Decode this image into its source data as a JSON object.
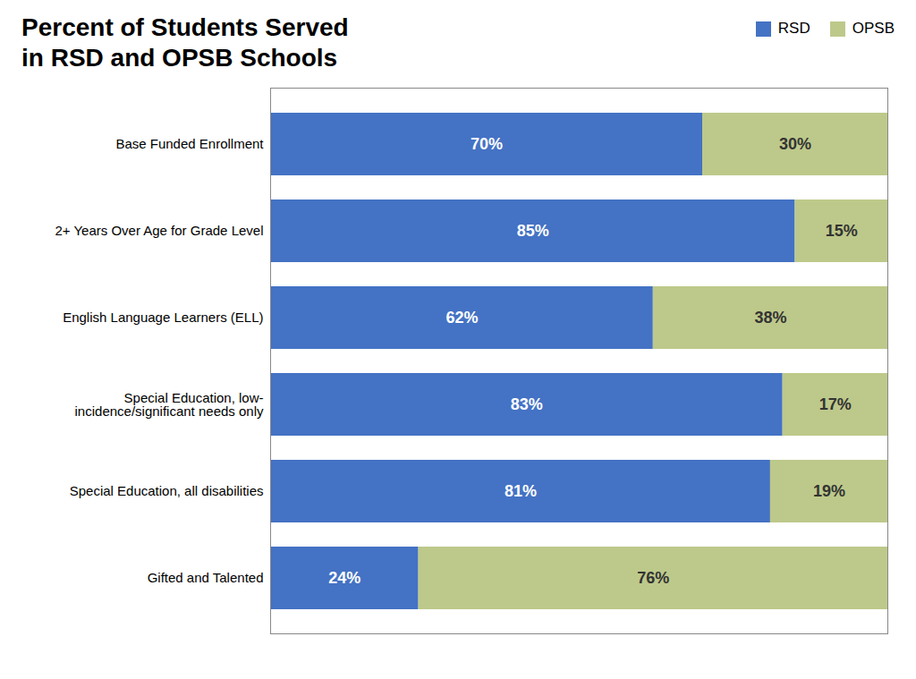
{
  "chart_data": {
    "type": "bar",
    "orientation": "horizontal",
    "stacked": true,
    "title": "Percent of Students Served\nin RSD and OPSB Schools",
    "categories": [
      "Base Funded Enrollment",
      "2+ Years Over Age for Grade Level",
      "English Language Learners (ELL)",
      "Special Education, low-\nincidence/significant needs only",
      "Special Education, all disabilities",
      "Gifted and Talented"
    ],
    "series": [
      {
        "name": "RSD",
        "color": "#4472C4",
        "values": [
          70,
          85,
          62,
          83,
          81,
          24
        ],
        "value_labels": [
          "70%",
          "85%",
          "62%",
          "83%",
          "81%",
          "24%"
        ]
      },
      {
        "name": "OPSB",
        "color": "#BDC98A",
        "values": [
          30,
          15,
          38,
          17,
          19,
          76
        ],
        "value_labels": [
          "30%",
          "15%",
          "38%",
          "17%",
          "19%",
          "76%"
        ]
      }
    ],
    "xlim": [
      0,
      100
    ],
    "xticks": [],
    "grid": false,
    "legend": "upper right",
    "data_labels": true,
    "tick_labels": "y"
  }
}
